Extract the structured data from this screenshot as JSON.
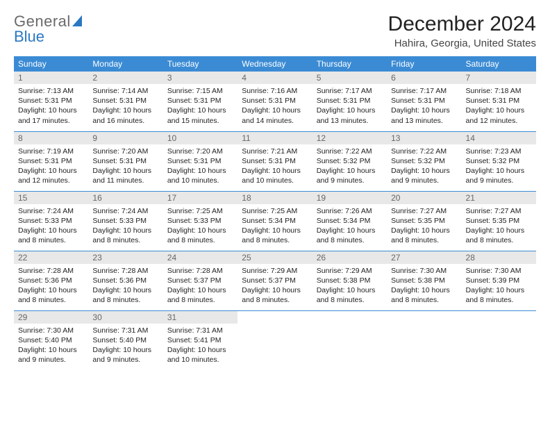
{
  "logo": {
    "text1": "General",
    "text2": "Blue"
  },
  "header": {
    "month_title": "December 2024",
    "location": "Hahira, Georgia, United States"
  },
  "calendar": {
    "day_headers": [
      "Sunday",
      "Monday",
      "Tuesday",
      "Wednesday",
      "Thursday",
      "Friday",
      "Saturday"
    ],
    "header_bg": "#3b8bd4",
    "daynum_bg": "#e8e8e8",
    "weeks": [
      [
        {
          "n": "1",
          "sr": "7:13 AM",
          "ss": "5:31 PM",
          "dl": "10 hours and 17 minutes."
        },
        {
          "n": "2",
          "sr": "7:14 AM",
          "ss": "5:31 PM",
          "dl": "10 hours and 16 minutes."
        },
        {
          "n": "3",
          "sr": "7:15 AM",
          "ss": "5:31 PM",
          "dl": "10 hours and 15 minutes."
        },
        {
          "n": "4",
          "sr": "7:16 AM",
          "ss": "5:31 PM",
          "dl": "10 hours and 14 minutes."
        },
        {
          "n": "5",
          "sr": "7:17 AM",
          "ss": "5:31 PM",
          "dl": "10 hours and 13 minutes."
        },
        {
          "n": "6",
          "sr": "7:17 AM",
          "ss": "5:31 PM",
          "dl": "10 hours and 13 minutes."
        },
        {
          "n": "7",
          "sr": "7:18 AM",
          "ss": "5:31 PM",
          "dl": "10 hours and 12 minutes."
        }
      ],
      [
        {
          "n": "8",
          "sr": "7:19 AM",
          "ss": "5:31 PM",
          "dl": "10 hours and 12 minutes."
        },
        {
          "n": "9",
          "sr": "7:20 AM",
          "ss": "5:31 PM",
          "dl": "10 hours and 11 minutes."
        },
        {
          "n": "10",
          "sr": "7:20 AM",
          "ss": "5:31 PM",
          "dl": "10 hours and 10 minutes."
        },
        {
          "n": "11",
          "sr": "7:21 AM",
          "ss": "5:31 PM",
          "dl": "10 hours and 10 minutes."
        },
        {
          "n": "12",
          "sr": "7:22 AM",
          "ss": "5:32 PM",
          "dl": "10 hours and 9 minutes."
        },
        {
          "n": "13",
          "sr": "7:22 AM",
          "ss": "5:32 PM",
          "dl": "10 hours and 9 minutes."
        },
        {
          "n": "14",
          "sr": "7:23 AM",
          "ss": "5:32 PM",
          "dl": "10 hours and 9 minutes."
        }
      ],
      [
        {
          "n": "15",
          "sr": "7:24 AM",
          "ss": "5:33 PM",
          "dl": "10 hours and 8 minutes."
        },
        {
          "n": "16",
          "sr": "7:24 AM",
          "ss": "5:33 PM",
          "dl": "10 hours and 8 minutes."
        },
        {
          "n": "17",
          "sr": "7:25 AM",
          "ss": "5:33 PM",
          "dl": "10 hours and 8 minutes."
        },
        {
          "n": "18",
          "sr": "7:25 AM",
          "ss": "5:34 PM",
          "dl": "10 hours and 8 minutes."
        },
        {
          "n": "19",
          "sr": "7:26 AM",
          "ss": "5:34 PM",
          "dl": "10 hours and 8 minutes."
        },
        {
          "n": "20",
          "sr": "7:27 AM",
          "ss": "5:35 PM",
          "dl": "10 hours and 8 minutes."
        },
        {
          "n": "21",
          "sr": "7:27 AM",
          "ss": "5:35 PM",
          "dl": "10 hours and 8 minutes."
        }
      ],
      [
        {
          "n": "22",
          "sr": "7:28 AM",
          "ss": "5:36 PM",
          "dl": "10 hours and 8 minutes."
        },
        {
          "n": "23",
          "sr": "7:28 AM",
          "ss": "5:36 PM",
          "dl": "10 hours and 8 minutes."
        },
        {
          "n": "24",
          "sr": "7:28 AM",
          "ss": "5:37 PM",
          "dl": "10 hours and 8 minutes."
        },
        {
          "n": "25",
          "sr": "7:29 AM",
          "ss": "5:37 PM",
          "dl": "10 hours and 8 minutes."
        },
        {
          "n": "26",
          "sr": "7:29 AM",
          "ss": "5:38 PM",
          "dl": "10 hours and 8 minutes."
        },
        {
          "n": "27",
          "sr": "7:30 AM",
          "ss": "5:38 PM",
          "dl": "10 hours and 8 minutes."
        },
        {
          "n": "28",
          "sr": "7:30 AM",
          "ss": "5:39 PM",
          "dl": "10 hours and 8 minutes."
        }
      ],
      [
        {
          "n": "29",
          "sr": "7:30 AM",
          "ss": "5:40 PM",
          "dl": "10 hours and 9 minutes."
        },
        {
          "n": "30",
          "sr": "7:31 AM",
          "ss": "5:40 PM",
          "dl": "10 hours and 9 minutes."
        },
        {
          "n": "31",
          "sr": "7:31 AM",
          "ss": "5:41 PM",
          "dl": "10 hours and 10 minutes."
        },
        null,
        null,
        null,
        null
      ]
    ],
    "labels": {
      "sunrise": "Sunrise:",
      "sunset": "Sunset:",
      "daylight": "Daylight:"
    }
  }
}
